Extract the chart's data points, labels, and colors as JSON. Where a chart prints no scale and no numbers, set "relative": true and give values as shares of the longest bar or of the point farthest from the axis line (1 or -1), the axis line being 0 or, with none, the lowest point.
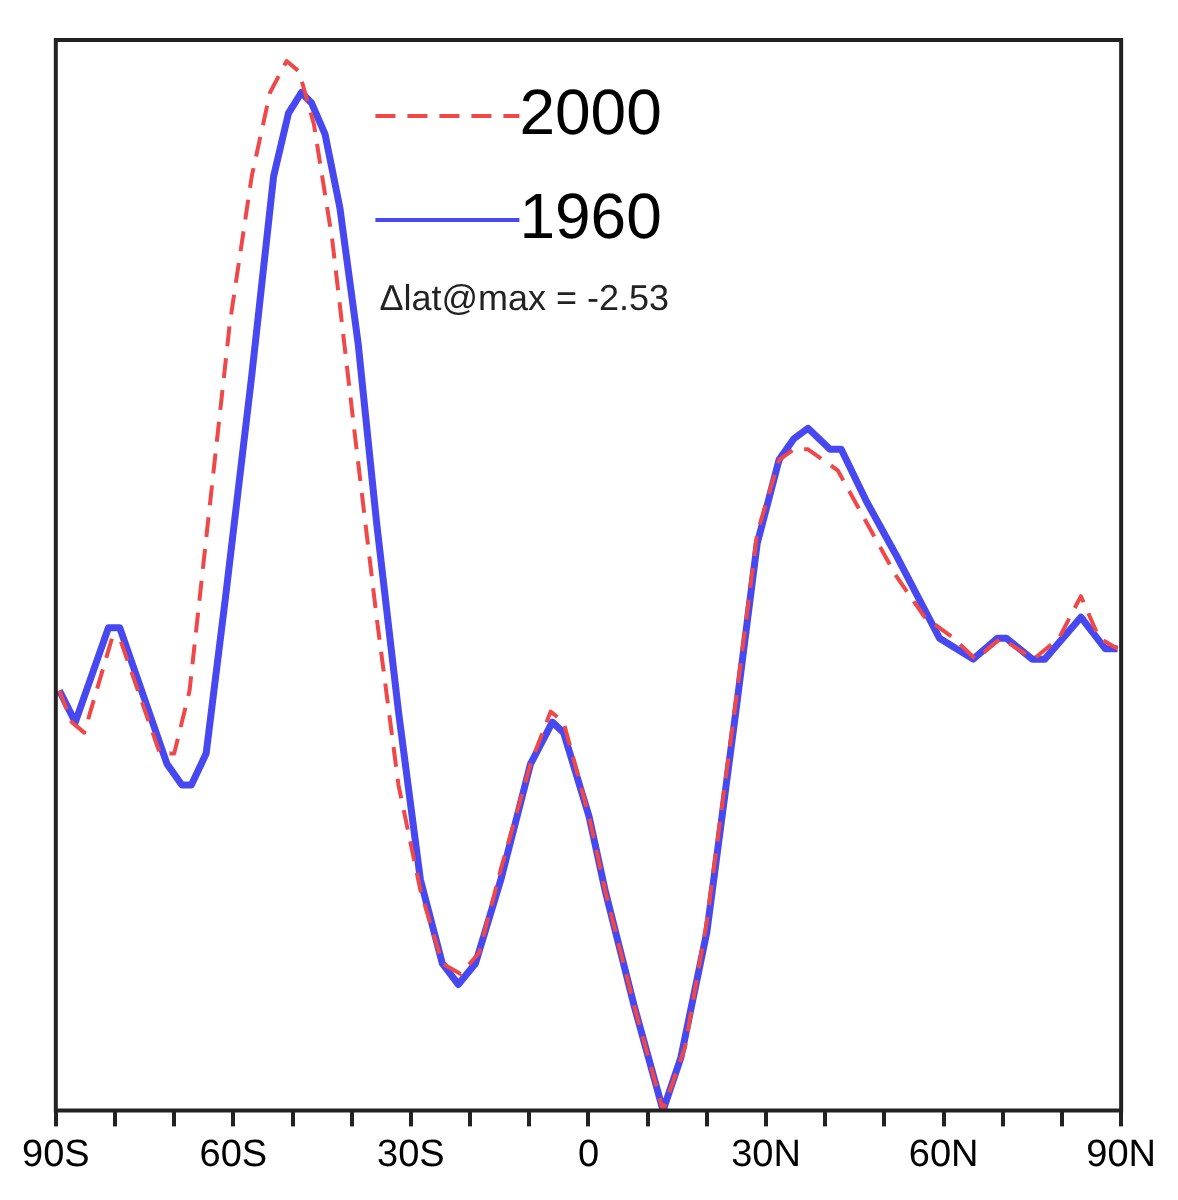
{
  "chart_data": {
    "type": "line",
    "relative": true,
    "xlim": [
      -90,
      90
    ],
    "xticks": [
      {
        "value": -90,
        "label": "90S"
      },
      {
        "value": -80,
        "label": null
      },
      {
        "value": -70,
        "label": null
      },
      {
        "value": -60,
        "label": "60S"
      },
      {
        "value": -50,
        "label": null
      },
      {
        "value": -40,
        "label": null
      },
      {
        "value": -30,
        "label": "30S"
      },
      {
        "value": -20,
        "label": null
      },
      {
        "value": -10,
        "label": null
      },
      0,
      {
        "value": 10,
        "label": null
      },
      {
        "value": 20,
        "label": null
      },
      {
        "value": 30,
        "label": "30N"
      },
      {
        "value": 40,
        "label": null
      },
      {
        "value": 50,
        "label": null
      },
      {
        "value": 60,
        "label": "60N"
      },
      {
        "value": 70,
        "label": null
      },
      {
        "value": 80,
        "label": null
      },
      {
        "value": 90,
        "label": "90N"
      }
    ],
    "series": [
      {
        "name": "2000",
        "color": "#f04848",
        "line_style": "dashed",
        "x": [
          -89.4,
          -87.3,
          -85.2,
          -80.5,
          -79.2,
          -75.5,
          -72.4,
          -70.0,
          -67.4,
          -64.3,
          -60.6,
          -56.9,
          -53.8,
          -51.0,
          -48.9,
          -46.4,
          -43.3,
          -39.6,
          -35.8,
          -32.1,
          -28.4,
          -24.7,
          -21.6,
          -18.5,
          -14.8,
          -9.8,
          -6.4,
          -4.2,
          0.1,
          2.8,
          7.7,
          12.6,
          16.3,
          20.0,
          24.9,
          28.5,
          32.2,
          34.7,
          37.1,
          42.1,
          47.0,
          51.9,
          56.8,
          61.7,
          65.4,
          69.7,
          75.2,
          79.5,
          83.2,
          86.3,
          89.4
        ],
        "values": [
          0.4,
          0.37,
          0.36,
          0.45,
          0.45,
          0.39,
          0.34,
          0.34,
          0.4,
          0.56,
          0.75,
          0.89,
          0.97,
          1.0,
          0.99,
          0.94,
          0.83,
          0.65,
          0.47,
          0.31,
          0.21,
          0.14,
          0.13,
          0.15,
          0.23,
          0.33,
          0.38,
          0.37,
          0.28,
          0.21,
          0.1,
          0.0,
          0.06,
          0.18,
          0.39,
          0.55,
          0.62,
          0.63,
          0.63,
          0.61,
          0.56,
          0.51,
          0.47,
          0.45,
          0.43,
          0.45,
          0.43,
          0.45,
          0.49,
          0.45,
          0.44
        ]
      },
      {
        "name": "1960",
        "color": "#4848f0",
        "line_style": "solid",
        "x": [
          -89.4,
          -86.7,
          -81.1,
          -79.2,
          -75.5,
          -71.2,
          -68.7,
          -67.1,
          -64.6,
          -61.3,
          -56.9,
          -53.2,
          -50.7,
          -48.5,
          -46.8,
          -44.5,
          -42.0,
          -38.9,
          -35.8,
          -32.1,
          -28.4,
          -24.7,
          -22.0,
          -19.1,
          -14.8,
          -9.8,
          -6.1,
          -4.2,
          0.1,
          2.8,
          7.7,
          12.6,
          15.6,
          20.0,
          24.9,
          28.5,
          32.2,
          34.7,
          37.1,
          40.8,
          42.7,
          47.0,
          51.9,
          55.6,
          59.3,
          65.0,
          69.1,
          70.6,
          75.0,
          77.1,
          83.2,
          87.3,
          89.4
        ],
        "values": [
          0.4,
          0.37,
          0.46,
          0.46,
          0.4,
          0.33,
          0.31,
          0.31,
          0.34,
          0.49,
          0.7,
          0.89,
          0.95,
          0.97,
          0.96,
          0.93,
          0.86,
          0.73,
          0.56,
          0.38,
          0.22,
          0.14,
          0.12,
          0.14,
          0.22,
          0.33,
          0.37,
          0.36,
          0.28,
          0.21,
          0.1,
          0.0,
          0.05,
          0.17,
          0.38,
          0.54,
          0.62,
          0.64,
          0.65,
          0.63,
          0.63,
          0.58,
          0.53,
          0.49,
          0.45,
          0.43,
          0.45,
          0.45,
          0.43,
          0.43,
          0.47,
          0.44,
          0.44
        ]
      }
    ],
    "legend": "top",
    "annotations": [
      "Δlat@max = -2.53"
    ]
  }
}
